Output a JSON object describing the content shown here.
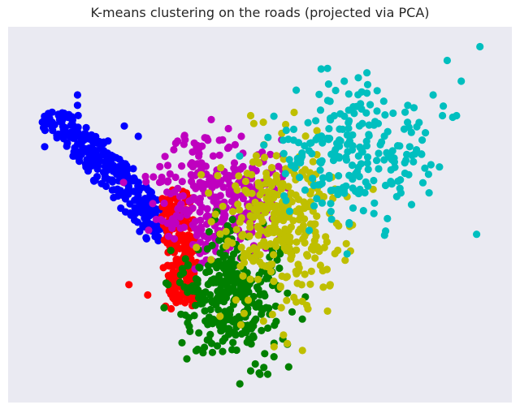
{
  "chart_data": {
    "type": "scatter",
    "title": "K-means clustering on the roads (projected via PCA)",
    "xlabel": "",
    "ylabel": "",
    "xlim": [
      0,
      100
    ],
    "ylim": [
      0,
      100
    ],
    "grid": false,
    "axis_ticks": false,
    "background_color": "#eaeaf2",
    "clusters": [
      {
        "color": "#0000ff",
        "shape": "band",
        "from": [
          6,
          79
        ],
        "to": [
          30,
          44
        ],
        "width": 8,
        "count": 300,
        "seed": 11,
        "extra_points": [
          [
            4,
            69
          ],
          [
            11,
            84
          ],
          [
            11,
            81
          ],
          [
            8,
            74
          ],
          [
            21,
            75
          ],
          [
            24,
            72
          ]
        ]
      },
      {
        "color": "#ff0000",
        "shape": "band",
        "from": [
          32,
          56
        ],
        "to": [
          34,
          23
        ],
        "width": 6,
        "count": 220,
        "seed": 23,
        "extra_points": [
          [
            22,
            29
          ],
          [
            26,
            26
          ],
          [
            31,
            22
          ]
        ]
      },
      {
        "color": "#bf00bf",
        "shape": "blob",
        "center": [
          41,
          55
        ],
        "spread": [
          6.5,
          9
        ],
        "count": 320,
        "seed": 37,
        "extra_points": [
          [
            32,
            70
          ],
          [
            34,
            71
          ],
          [
            42,
            71
          ],
          [
            46,
            72
          ],
          [
            33,
            52
          ]
        ]
      },
      {
        "color": "#008000",
        "shape": "blob",
        "center": [
          44,
          26
        ],
        "spread": [
          6,
          9
        ],
        "count": 320,
        "seed": 41,
        "extra_points": [
          [
            48,
            4
          ],
          [
            50,
            3
          ],
          [
            49,
            6
          ],
          [
            45,
            10
          ],
          [
            53,
            12
          ],
          [
            51,
            9
          ]
        ]
      },
      {
        "color": "#bfbf00",
        "shape": "blob",
        "center": [
          55,
          46
        ],
        "spread": [
          7,
          12
        ],
        "count": 320,
        "seed": 53,
        "extra_points": [
          [
            48,
            78
          ],
          [
            53,
            11
          ],
          [
            60,
            23
          ],
          [
            65,
            29
          ],
          [
            66,
            38
          ],
          [
            62,
            43
          ]
        ]
      },
      {
        "color": "#00bfbf",
        "shape": "blob",
        "center": [
          69,
          65
        ],
        "spread": [
          8,
          10
        ],
        "count": 230,
        "seed": 67,
        "extra_points": [
          [
            97,
            98
          ],
          [
            90,
            94
          ],
          [
            93,
            88
          ],
          [
            87,
            84
          ],
          [
            84,
            76
          ],
          [
            81,
            79
          ],
          [
            82,
            69
          ],
          [
            89,
            78
          ],
          [
            92,
            78
          ],
          [
            86,
            61
          ],
          [
            68,
            88
          ],
          [
            71,
            89
          ],
          [
            73,
            87
          ]
        ]
      }
    ]
  }
}
